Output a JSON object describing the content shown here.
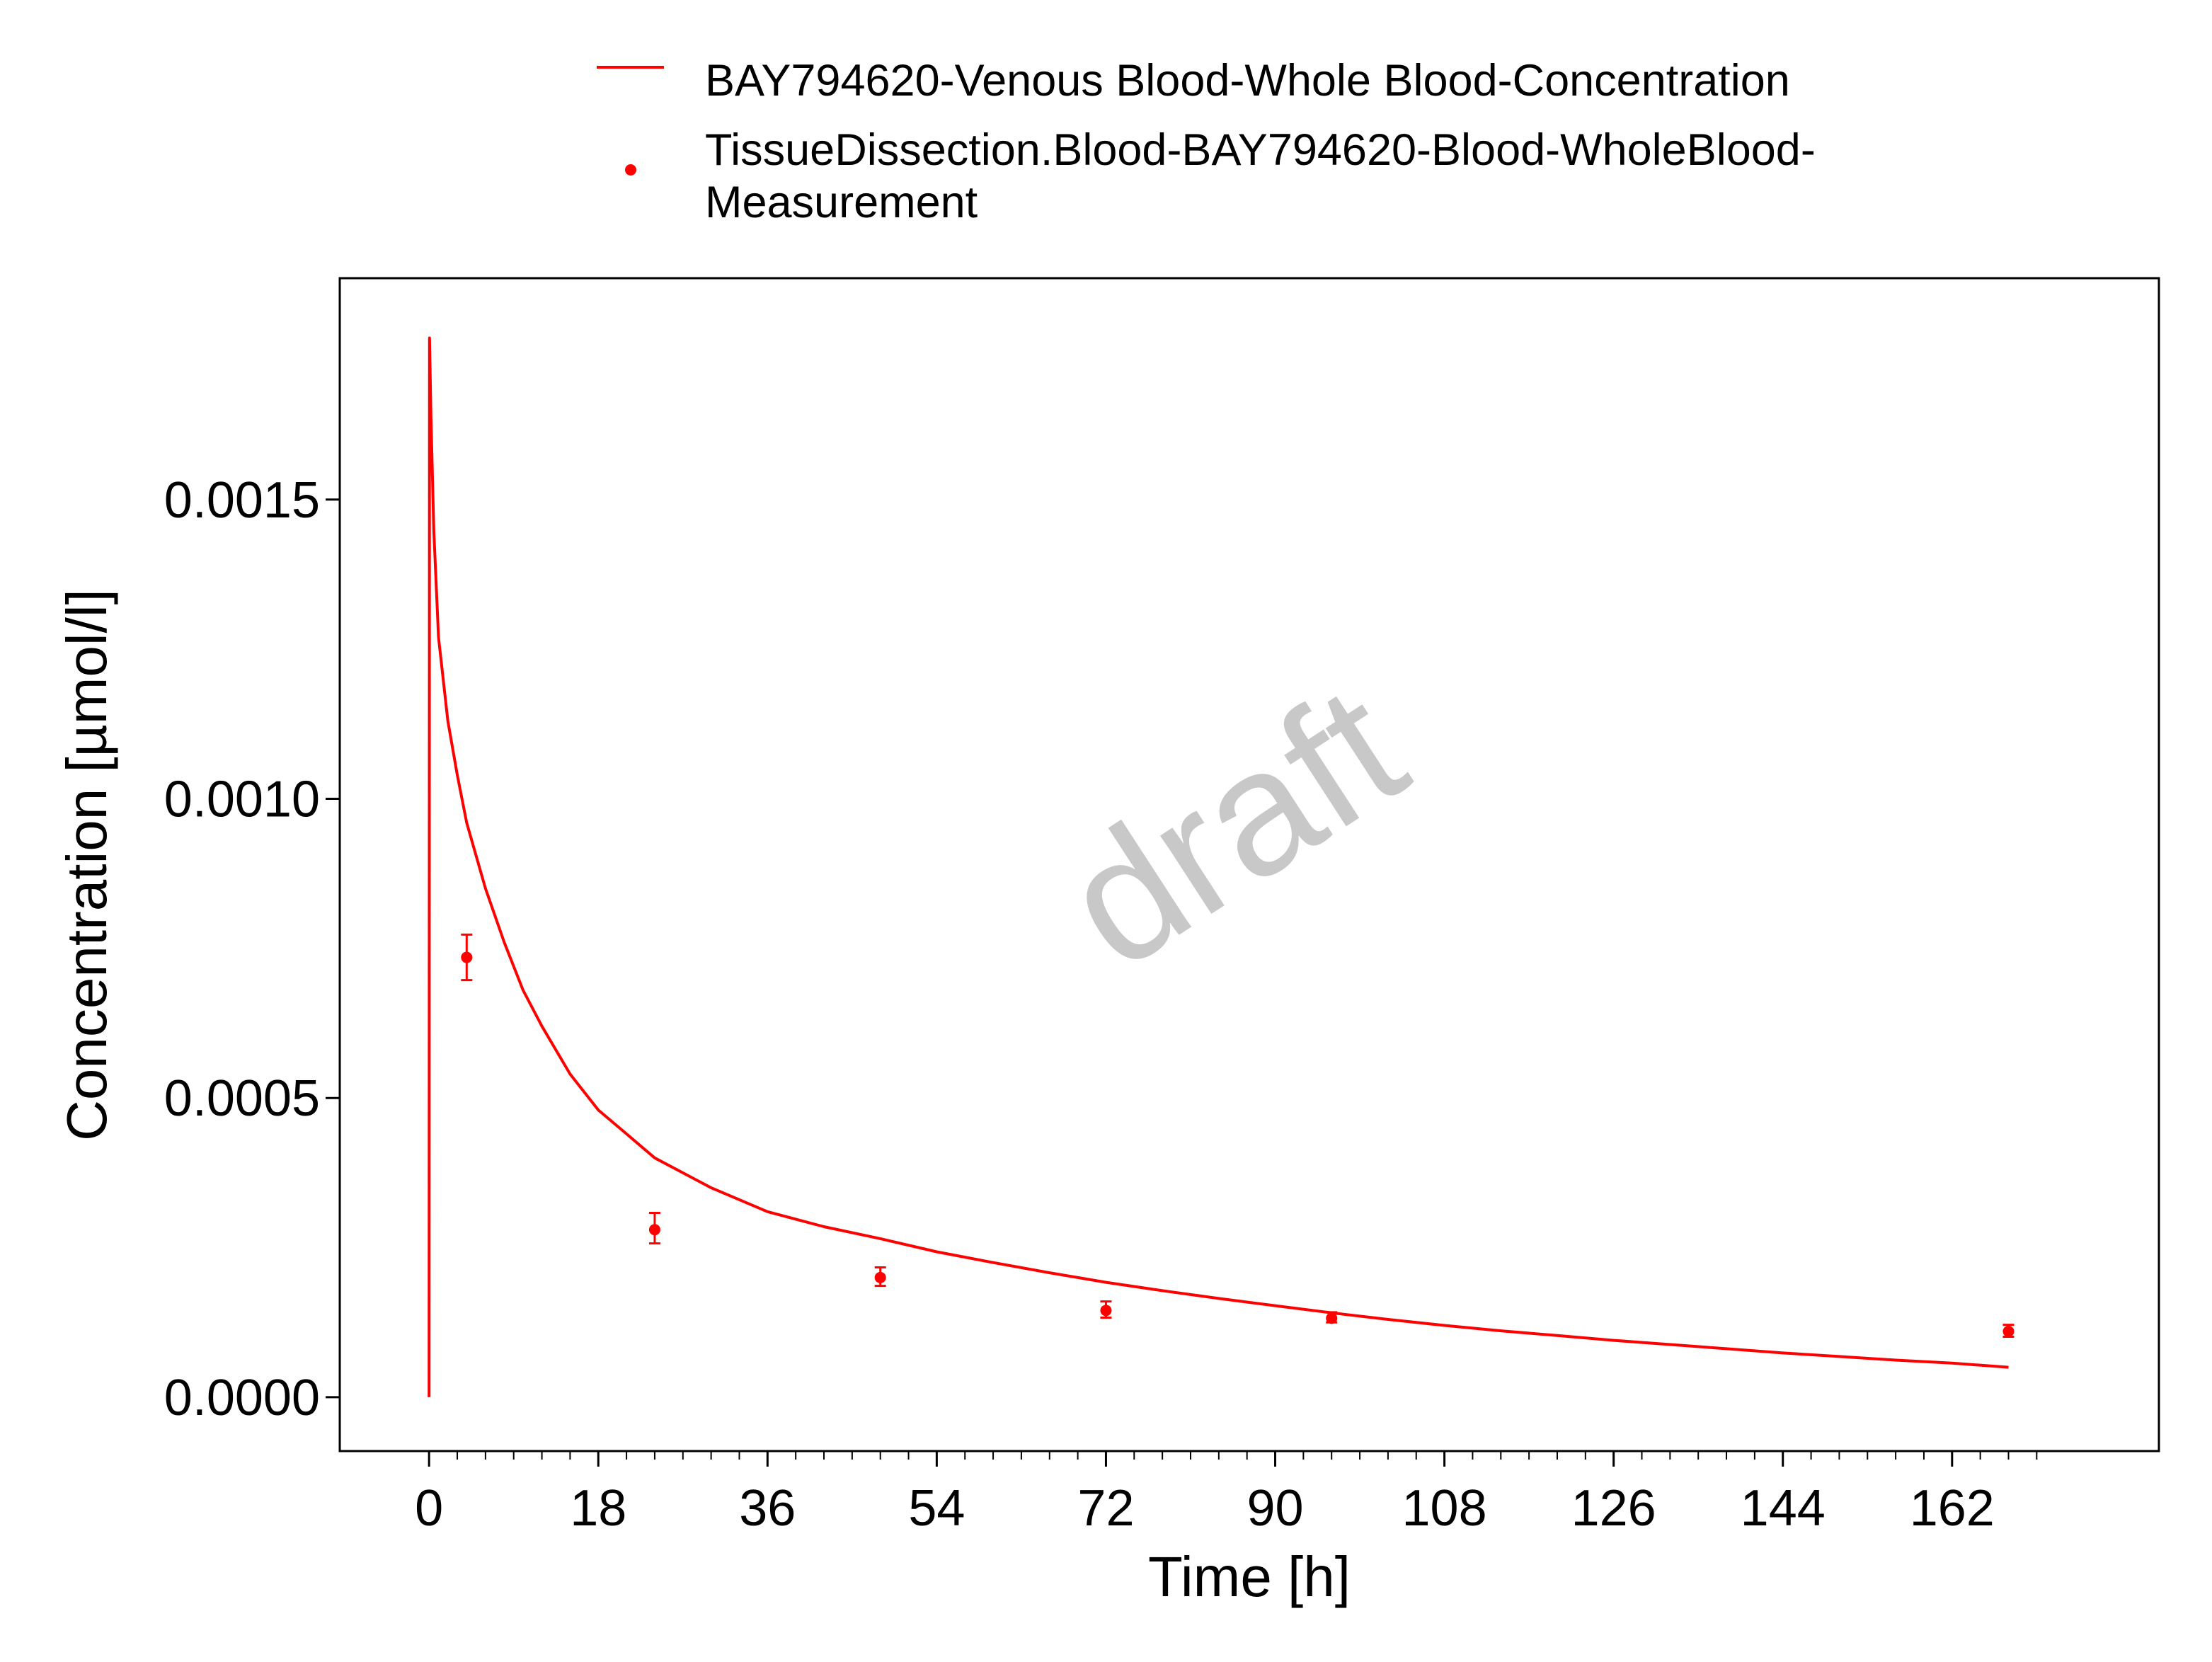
{
  "chart_data": {
    "type": "line",
    "xlabel": "Time [h]",
    "ylabel": "Concentration [µmol/l]",
    "xlim": [
      -9.5,
      184
    ],
    "ylim": [
      -9e-05,
      0.00187
    ],
    "x_ticks": [
      0,
      18,
      36,
      54,
      72,
      90,
      108,
      126,
      144,
      162
    ],
    "x_tick_labels": [
      "0",
      "18",
      "36",
      "54",
      "72",
      "90",
      "108",
      "126",
      "144",
      "162"
    ],
    "y_ticks": [
      0.0,
      0.0005,
      0.001,
      0.0015
    ],
    "y_tick_labels": [
      "0.0000",
      "0.0005",
      "0.0010",
      "0.0015"
    ],
    "grid": false,
    "legend_position": "top",
    "watermark": "draft",
    "series": [
      {
        "name": "BAY794620-Venous Blood-Whole Blood-Concentration",
        "kind": "line",
        "color": "#ff0000",
        "x": [
          0,
          0.05,
          0.2,
          0.5,
          1,
          2,
          3,
          4,
          6,
          8,
          10,
          12,
          15,
          18,
          21,
          24,
          30,
          36,
          42,
          48,
          54,
          60,
          66,
          72,
          78,
          84,
          90,
          96,
          102,
          108,
          114,
          120,
          126,
          132,
          138,
          144,
          150,
          156,
          162,
          168
        ],
        "y": [
          0,
          0.00177,
          0.00164,
          0.00145,
          0.00127,
          0.00113,
          0.00104,
          0.00096,
          0.00085,
          0.00076,
          0.00068,
          0.00062,
          0.00054,
          0.00048,
          0.00044,
          0.0004,
          0.00035,
          0.00031,
          0.000285,
          0.000265,
          0.000243,
          0.000225,
          0.000208,
          0.000192,
          0.000178,
          0.000165,
          0.000153,
          0.000141,
          0.00013,
          0.00012,
          0.000111,
          0.000103,
          9.5e-05,
          8.8e-05,
          8.1e-05,
          7.4e-05,
          6.8e-05,
          6.2e-05,
          5.7e-05,
          5e-05
        ]
      },
      {
        "name": "TissueDissection.Blood-BAY794620-Blood-WholeBlood-Measurement",
        "name_lines": [
          "TissueDissection.Blood-BAY794620-Blood-WholeBlood-",
          "Measurement"
        ],
        "kind": "scatter",
        "color": "#ff0000",
        "x": [
          4,
          24,
          48,
          72,
          96,
          168
        ],
        "y": [
          0.000735,
          0.00028,
          0.0002,
          0.000145,
          0.000132,
          0.00011
        ],
        "y_lower": [
          0.000697,
          0.000257,
          0.000186,
          0.000133,
          0.000125,
          0.000101
        ],
        "y_upper": [
          0.000773,
          0.000308,
          0.000217,
          0.00016,
          0.000142,
          0.000121
        ]
      }
    ]
  }
}
